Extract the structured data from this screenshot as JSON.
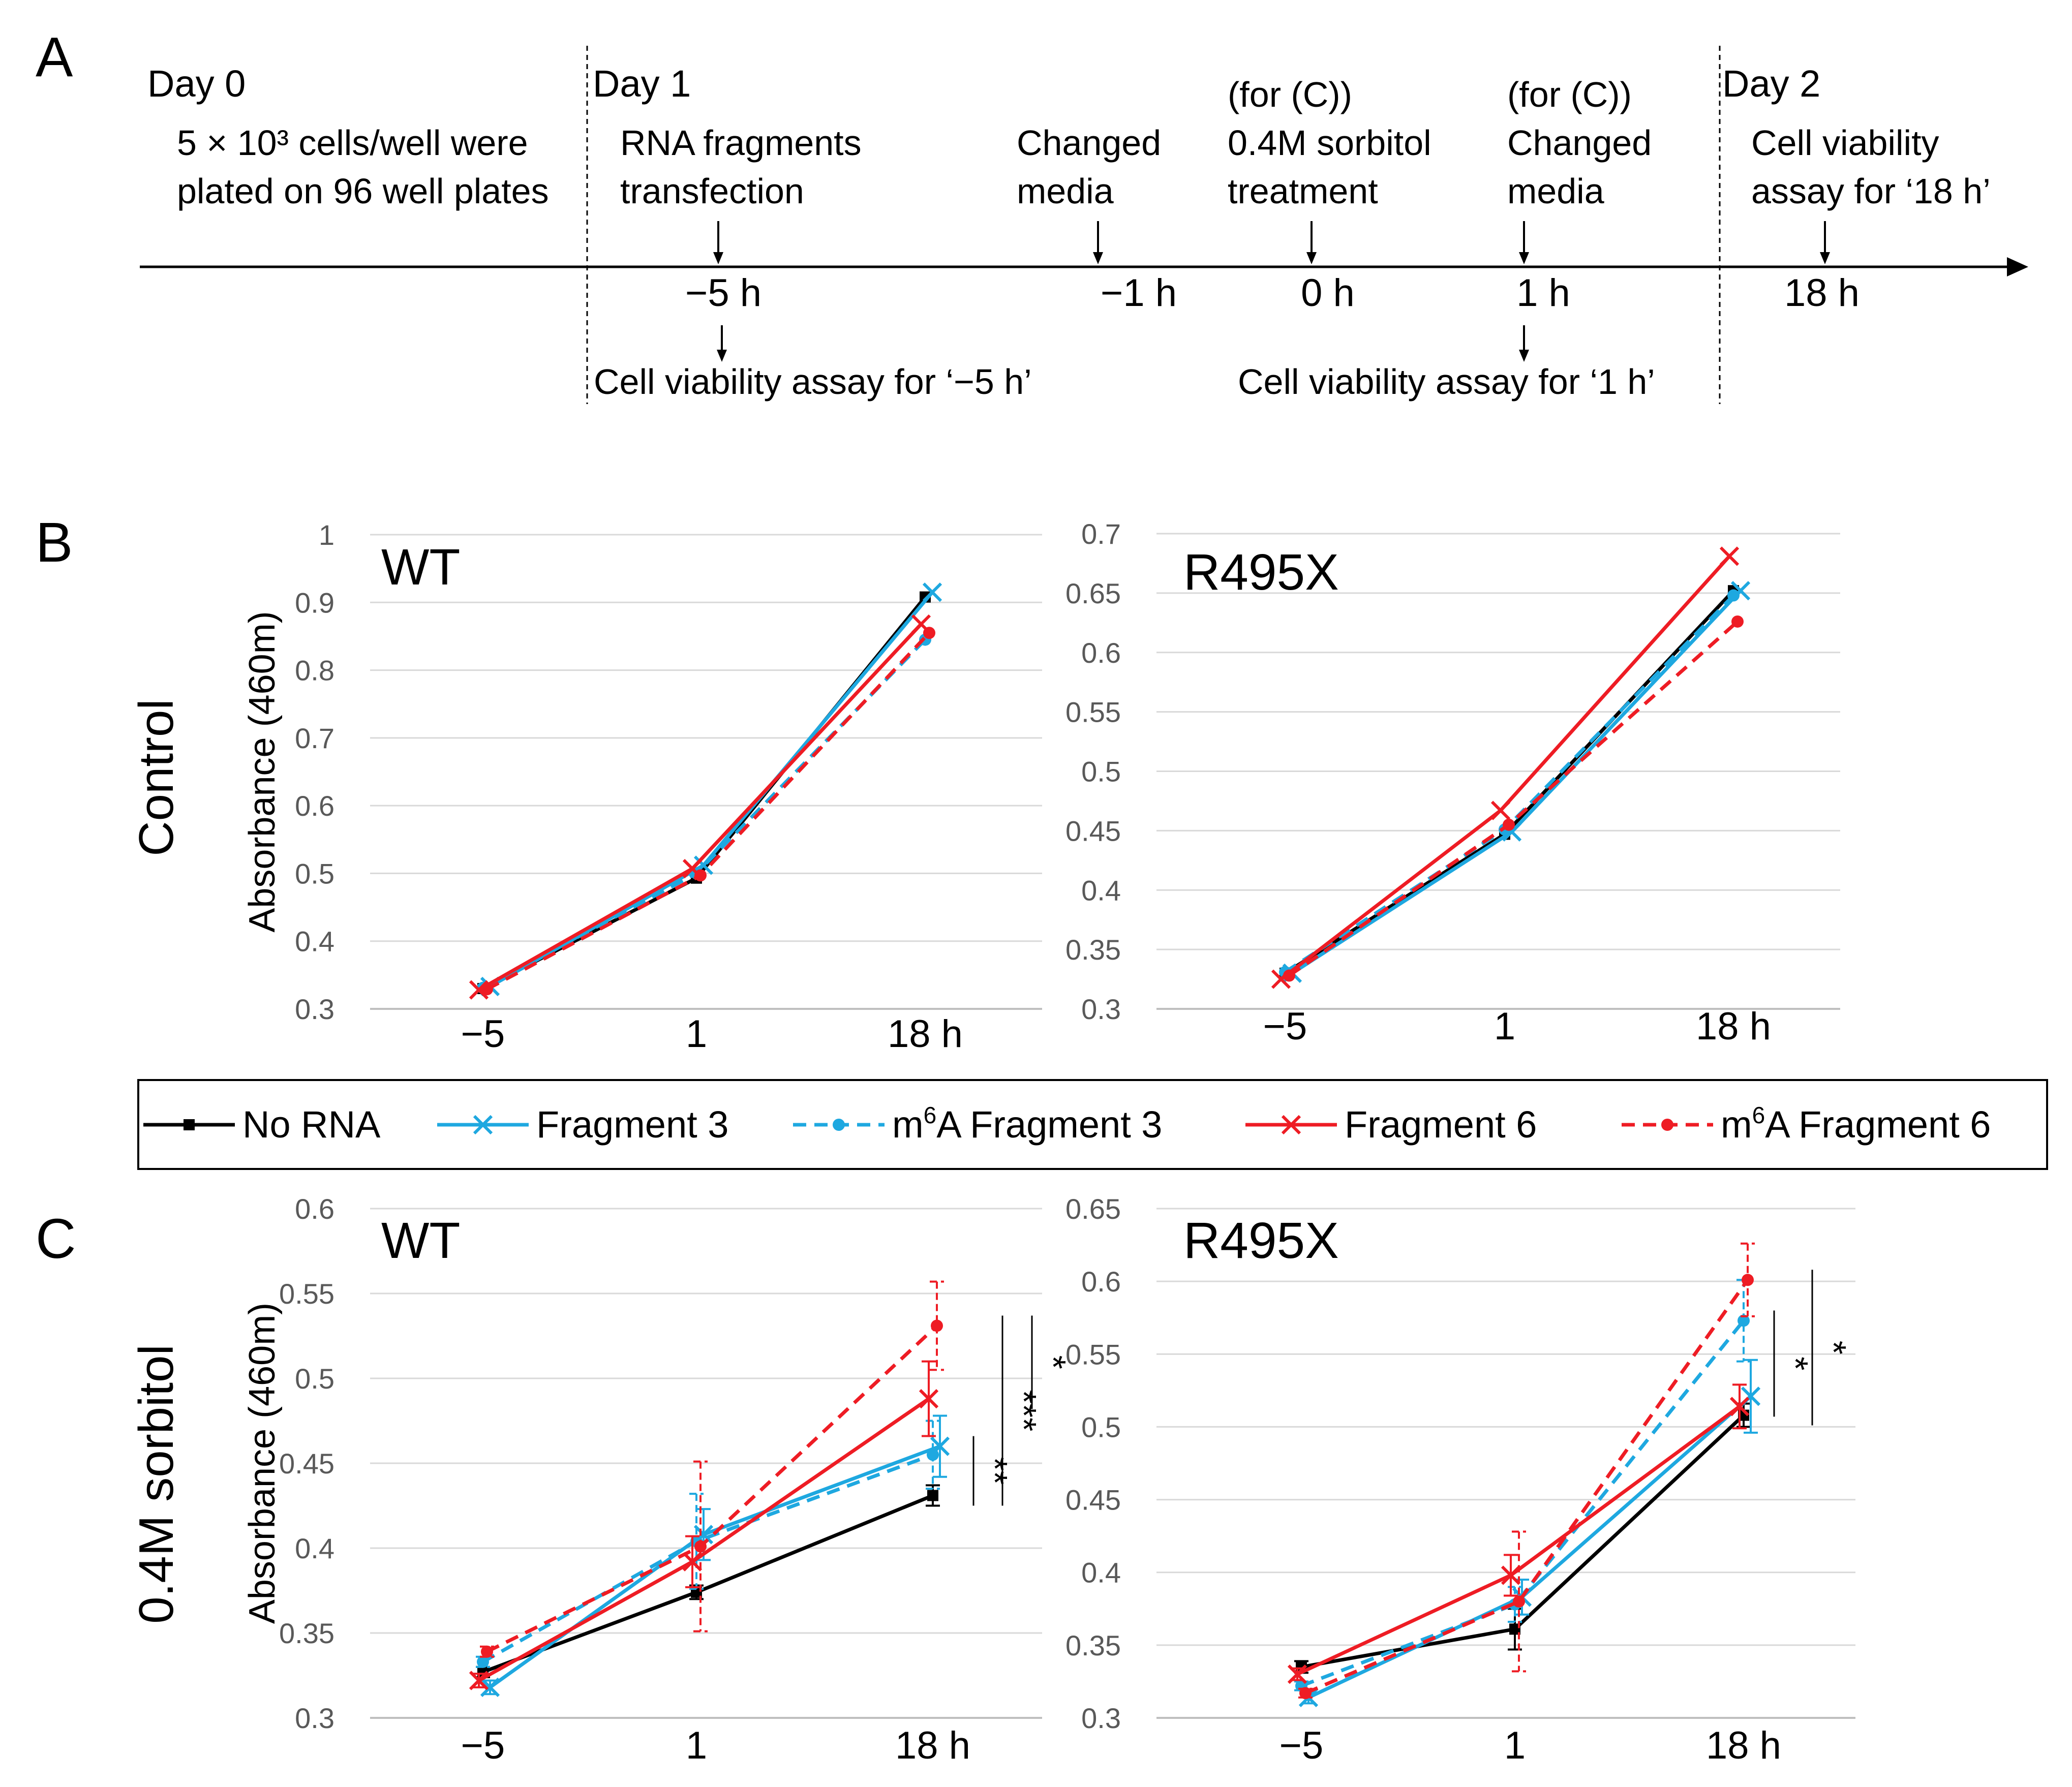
{
  "colors": {
    "no_rna": "#000000",
    "fragment3": "#1ea8e0",
    "fragment6": "#ee1c24",
    "grid": "#d9d9d9",
    "axis": "#bfbfbf",
    "tick_text": "#595959"
  },
  "panel_a": {
    "label": "A",
    "day0": "Day 0",
    "day1": "Day 1",
    "day2": "Day 2",
    "plating_line1": "5 × 10³ cells/well were",
    "plating_line2": "plated on 96 well plates",
    "events": [
      {
        "time": "−5 h",
        "lines": [
          "RNA fragments",
          "transfection"
        ]
      },
      {
        "time": "−1 h",
        "lines": [
          "Changed",
          "media"
        ]
      },
      {
        "time": "0 h",
        "lines": [
          "(for (C))",
          "0.4M sorbitol",
          "treatment"
        ]
      },
      {
        "time": "1 h",
        "lines": [
          "(for (C))",
          "Changed",
          "media"
        ]
      },
      {
        "time": "18 h",
        "lines": [
          "Cell viability",
          "assay for ‘18 h’"
        ]
      }
    ],
    "below": [
      {
        "text": "Cell viability assay for ‘−5 h’"
      },
      {
        "text": "Cell viability assay for ‘1 h’"
      }
    ]
  },
  "panel_b": {
    "label": "B",
    "row_label": "Control"
  },
  "panel_c": {
    "label": "C",
    "row_label": "0.4M sorbitol"
  },
  "legend": [
    {
      "key": "no_rna",
      "label": "No RNA"
    },
    {
      "key": "frag3",
      "label": "Fragment 3"
    },
    {
      "key": "m6a_frag3",
      "label_pre": "m",
      "label_sup": "6",
      "label_post": "A Fragment 3"
    },
    {
      "key": "frag6",
      "label": "Fragment 6"
    },
    {
      "key": "m6a_frag6",
      "label_pre": "m",
      "label_sup": "6",
      "label_post": "A Fragment 6"
    }
  ],
  "chart_data": [
    {
      "id": "b_wt",
      "type": "line",
      "title": "WT",
      "ylabel": "Absorbance (460m)",
      "categories": [
        "−5",
        "1",
        "18 h"
      ],
      "ylim": [
        0.3,
        1.0
      ],
      "yticks": [
        0.3,
        0.4,
        0.5,
        0.6,
        0.7,
        0.8,
        0.9,
        1
      ],
      "series": [
        {
          "key": "no_rna",
          "name": "No RNA",
          "values": [
            0.33,
            0.493,
            0.908
          ]
        },
        {
          "key": "frag3",
          "name": "Fragment 3",
          "values": [
            0.333,
            0.512,
            0.915
          ]
        },
        {
          "key": "m6a_frag3",
          "name": "m6A Fragment 3",
          "values": [
            0.331,
            0.5,
            0.845
          ]
        },
        {
          "key": "frag6",
          "name": "Fragment 6",
          "values": [
            0.328,
            0.507,
            0.868
          ]
        },
        {
          "key": "m6a_frag6",
          "name": "m6A Fragment 6",
          "values": [
            0.329,
            0.497,
            0.855
          ]
        }
      ]
    },
    {
      "id": "b_r495x",
      "type": "line",
      "title": "R495X",
      "ylabel": "",
      "categories": [
        "−5",
        "1",
        "18 h"
      ],
      "ylim": [
        0.3,
        0.7
      ],
      "yticks": [
        0.3,
        0.35,
        0.4,
        0.45,
        0.5,
        0.55,
        0.6,
        0.65,
        0.7
      ],
      "series": [
        {
          "key": "no_rna",
          "name": "No RNA",
          "values": [
            0.33,
            0.447,
            0.652
          ]
        },
        {
          "key": "frag3",
          "name": "Fragment 3",
          "values": [
            0.33,
            0.449,
            0.652
          ]
        },
        {
          "key": "m6a_frag3",
          "name": "m6A Fragment 3",
          "values": [
            0.331,
            0.451,
            0.648
          ]
        },
        {
          "key": "frag6",
          "name": "Fragment 6",
          "values": [
            0.325,
            0.467,
            0.681
          ]
        },
        {
          "key": "m6a_frag6",
          "name": "m6A Fragment 6",
          "values": [
            0.328,
            0.455,
            0.626
          ]
        }
      ]
    },
    {
      "id": "c_wt",
      "type": "line",
      "title": "WT",
      "ylabel": "Absorbance (460m)",
      "categories": [
        "−5",
        "1",
        "18 h"
      ],
      "ylim": [
        0.3,
        0.6
      ],
      "yticks": [
        0.3,
        0.35,
        0.4,
        0.45,
        0.5,
        0.55,
        0.6
      ],
      "series": [
        {
          "key": "no_rna",
          "name": "No RNA",
          "values": [
            0.327,
            0.374,
            0.431
          ],
          "err": [
            0.003,
            0.004,
            0.006
          ]
        },
        {
          "key": "frag3",
          "name": "Fragment 3",
          "values": [
            0.318,
            0.408,
            0.46
          ],
          "err": [
            0.004,
            0.015,
            0.018
          ]
        },
        {
          "key": "m6a_frag3",
          "name": "m6A Fragment 3",
          "values": [
            0.333,
            0.404,
            0.455
          ],
          "err": [
            0.003,
            0.028,
            0.02
          ]
        },
        {
          "key": "frag6",
          "name": "Fragment 6",
          "values": [
            0.322,
            0.392,
            0.488
          ],
          "err": [
            0.004,
            0.015,
            0.022
          ]
        },
        {
          "key": "m6a_frag6",
          "name": "m6A Fragment 6",
          "values": [
            0.339,
            0.401,
            0.531
          ],
          "err": [
            0.003,
            0.05,
            0.026
          ]
        }
      ],
      "significance": [
        {
          "label": "**",
          "from": "no_rna",
          "to": "frag3"
        },
        {
          "label": "***",
          "from": "no_rna",
          "to": "m6a_frag6"
        },
        {
          "label": "*",
          "from": "frag6",
          "to": "m6a_frag6"
        }
      ]
    },
    {
      "id": "c_r495x",
      "type": "line",
      "title": "R495X",
      "ylabel": "",
      "categories": [
        "−5",
        "1",
        "18 h"
      ],
      "ylim": [
        0.3,
        0.65
      ],
      "yticks": [
        0.3,
        0.35,
        0.4,
        0.45,
        0.5,
        0.55,
        0.6,
        0.65
      ],
      "series": [
        {
          "key": "no_rna",
          "name": "No RNA",
          "values": [
            0.335,
            0.361,
            0.508
          ],
          "err": [
            0.004,
            0.014,
            0.008
          ]
        },
        {
          "key": "frag3",
          "name": "Fragment 3",
          "values": [
            0.314,
            0.383,
            0.521
          ],
          "err": [
            0.004,
            0.012,
            0.025
          ]
        },
        {
          "key": "m6a_frag3",
          "name": "m6A Fragment 3",
          "values": [
            0.322,
            0.378,
            0.573
          ],
          "err": [
            0.003,
            0.012,
            0.028
          ]
        },
        {
          "key": "frag6",
          "name": "Fragment 6",
          "values": [
            0.33,
            0.398,
            0.514
          ],
          "err": [
            0.004,
            0.014,
            0.015
          ]
        },
        {
          "key": "m6a_frag6",
          "name": "m6A Fragment 6",
          "values": [
            0.317,
            0.38,
            0.601
          ],
          "err": [
            0.003,
            0.048,
            0.025
          ]
        }
      ],
      "significance": [
        {
          "label": "*",
          "from": "frag6",
          "to": "m6a_frag3"
        },
        {
          "label": "*",
          "from": "no_rna",
          "to": "m6a_frag6"
        }
      ]
    }
  ]
}
